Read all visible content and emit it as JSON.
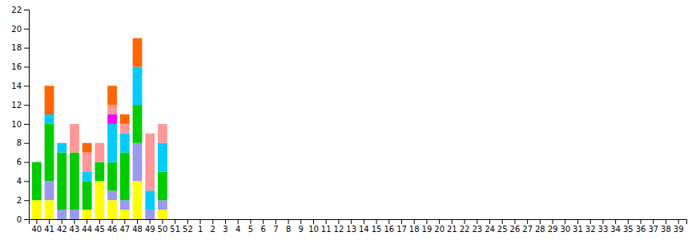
{
  "chart_data": {
    "type": "bar",
    "stacked": true,
    "categories": [
      "40",
      "41",
      "42",
      "43",
      "44",
      "45",
      "46",
      "47",
      "48",
      "49",
      "50",
      "51",
      "52",
      "1",
      "2",
      "3",
      "4",
      "5",
      "6",
      "7",
      "8",
      "9",
      "10",
      "11",
      "12",
      "13",
      "14",
      "15",
      "16",
      "17",
      "18",
      "19",
      "20",
      "21",
      "22",
      "23",
      "24",
      "25",
      "26",
      "27",
      "28",
      "29",
      "30",
      "31",
      "32",
      "33",
      "34",
      "35",
      "36",
      "37",
      "38",
      "39"
    ],
    "series": [
      {
        "color": "#FFFF00",
        "values": [
          2,
          2,
          0,
          0,
          1,
          4,
          2,
          1,
          4,
          0,
          1,
          0,
          0,
          0,
          0,
          0,
          0,
          0,
          0,
          0,
          0,
          0,
          0,
          0,
          0,
          0,
          0,
          0,
          0,
          0,
          0,
          0,
          0,
          0,
          0,
          0,
          0,
          0,
          0,
          0,
          0,
          0,
          0,
          0,
          0,
          0,
          0,
          0,
          0,
          0,
          0,
          0
        ]
      },
      {
        "color": "#9999EE",
        "values": [
          0,
          2,
          1,
          1,
          0,
          0,
          1,
          1,
          4,
          1,
          1,
          0,
          0,
          0,
          0,
          0,
          0,
          0,
          0,
          0,
          0,
          0,
          0,
          0,
          0,
          0,
          0,
          0,
          0,
          0,
          0,
          0,
          0,
          0,
          0,
          0,
          0,
          0,
          0,
          0,
          0,
          0,
          0,
          0,
          0,
          0,
          0,
          0,
          0,
          0,
          0,
          0
        ]
      },
      {
        "color": "#00CC00",
        "values": [
          4,
          6,
          6,
          6,
          3,
          2,
          3,
          5,
          4,
          0,
          3,
          0,
          0,
          0,
          0,
          0,
          0,
          0,
          0,
          0,
          0,
          0,
          0,
          0,
          0,
          0,
          0,
          0,
          0,
          0,
          0,
          0,
          0,
          0,
          0,
          0,
          0,
          0,
          0,
          0,
          0,
          0,
          0,
          0,
          0,
          0,
          0,
          0,
          0,
          0,
          0,
          0
        ]
      },
      {
        "color": "#00CCFF",
        "values": [
          0,
          1,
          1,
          0,
          1,
          0,
          4,
          2,
          4,
          2,
          3,
          0,
          0,
          0,
          0,
          0,
          0,
          0,
          0,
          0,
          0,
          0,
          0,
          0,
          0,
          0,
          0,
          0,
          0,
          0,
          0,
          0,
          0,
          0,
          0,
          0,
          0,
          0,
          0,
          0,
          0,
          0,
          0,
          0,
          0,
          0,
          0,
          0,
          0,
          0,
          0,
          0
        ]
      },
      {
        "color": "#FF00FF",
        "values": [
          0,
          0,
          0,
          0,
          0,
          0,
          1,
          0,
          0,
          0,
          0,
          0,
          0,
          0,
          0,
          0,
          0,
          0,
          0,
          0,
          0,
          0,
          0,
          0,
          0,
          0,
          0,
          0,
          0,
          0,
          0,
          0,
          0,
          0,
          0,
          0,
          0,
          0,
          0,
          0,
          0,
          0,
          0,
          0,
          0,
          0,
          0,
          0,
          0,
          0,
          0,
          0
        ]
      },
      {
        "color": "#FF9999",
        "values": [
          0,
          0,
          0,
          3,
          2,
          2,
          1,
          1,
          0,
          6,
          2,
          0,
          0,
          0,
          0,
          0,
          0,
          0,
          0,
          0,
          0,
          0,
          0,
          0,
          0,
          0,
          0,
          0,
          0,
          0,
          0,
          0,
          0,
          0,
          0,
          0,
          0,
          0,
          0,
          0,
          0,
          0,
          0,
          0,
          0,
          0,
          0,
          0,
          0,
          0,
          0,
          0
        ]
      },
      {
        "color": "#FF6600",
        "values": [
          0,
          3,
          0,
          0,
          1,
          0,
          2,
          1,
          3,
          0,
          0,
          0,
          0,
          0,
          0,
          0,
          0,
          0,
          0,
          0,
          0,
          0,
          0,
          0,
          0,
          0,
          0,
          0,
          0,
          0,
          0,
          0,
          0,
          0,
          0,
          0,
          0,
          0,
          0,
          0,
          0,
          0,
          0,
          0,
          0,
          0,
          0,
          0,
          0,
          0,
          0,
          0
        ]
      }
    ],
    "ylim": [
      0,
      22
    ],
    "yticks": [
      0,
      2,
      4,
      6,
      8,
      10,
      12,
      14,
      16,
      18,
      20,
      22
    ]
  }
}
